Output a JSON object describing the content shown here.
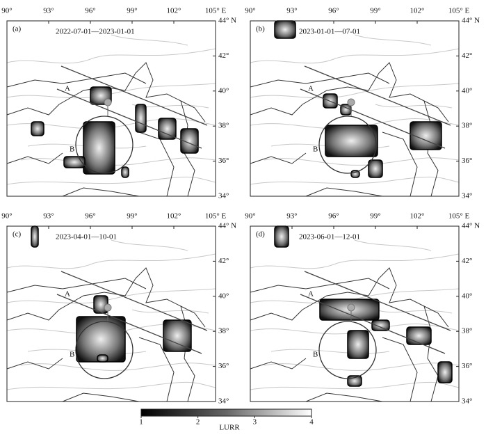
{
  "panels": [
    {
      "label": "(a)",
      "period": "2022-07-01—2023-01-01",
      "fault_a": "A",
      "fault_b": "B"
    },
    {
      "label": "(b)",
      "period": "2023-01-01—07-01",
      "fault_a": "A",
      "fault_b": "B"
    },
    {
      "label": "(c)",
      "period": "2023-04-01—10-01",
      "fault_a": "A",
      "fault_b": "B"
    },
    {
      "label": "(d)",
      "period": "2023-06-01—12-01",
      "fault_a": "A",
      "fault_b": "B"
    }
  ],
  "lon_ticks": [
    "90°",
    "93°",
    "96°",
    "99°",
    "102°",
    "105° E"
  ],
  "lat_ticks": [
    "44° N",
    "42°",
    "40°",
    "38°",
    "36°",
    "34°"
  ],
  "colorbar": {
    "ticks": [
      1,
      2,
      3,
      4
    ],
    "label": "LURR"
  }
}
